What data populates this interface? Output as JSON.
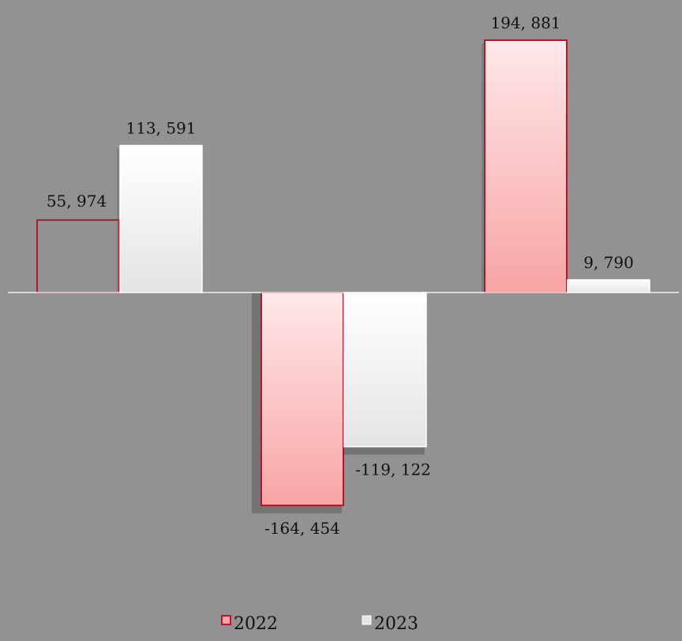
{
  "chart_data": {
    "type": "bar",
    "categories": [
      "",
      "",
      ""
    ],
    "series": [
      {
        "name": "2022",
        "values": [
          55974,
          -164454,
          194881
        ],
        "labels": [
          "55, 974",
          "-164, 454",
          "194, 881"
        ],
        "color": "#b2182b",
        "fill_top": "#ffe8ea",
        "fill_bottom": "#f8a4a4"
      },
      {
        "name": "2023",
        "values": [
          113591,
          -119122,
          9790
        ],
        "labels": [
          "113, 591",
          "-119, 122",
          "9, 790"
        ],
        "color": "#ffffff",
        "fill_top": "#ffffff",
        "fill_bottom": "#e4e4e4"
      }
    ],
    "legend": "bottom-center",
    "grid": false,
    "background": "#929292",
    "axis_line_color": "#f2f2f2",
    "notes": "The first 2022 bar is drawn as an outline only (no fill)."
  }
}
